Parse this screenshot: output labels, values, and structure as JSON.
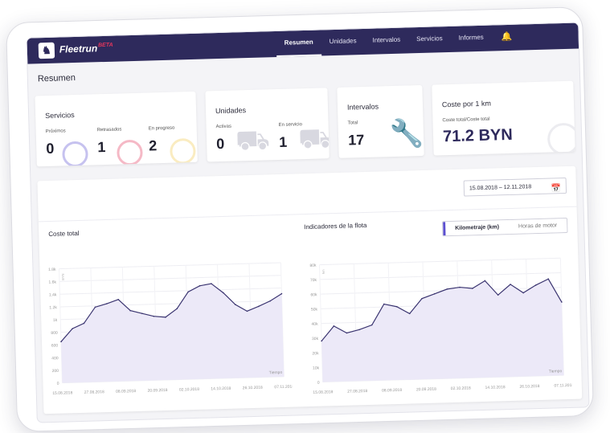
{
  "app": {
    "logo_glyph": "♞",
    "name": "Fleetrun",
    "badge": "BETA"
  },
  "nav": {
    "items": [
      {
        "label": "Resumen",
        "active": true
      },
      {
        "label": "Unidades",
        "active": false
      },
      {
        "label": "Intervalos",
        "active": false
      },
      {
        "label": "Servicios",
        "active": false
      },
      {
        "label": "Informes",
        "active": false
      }
    ],
    "bell_icon": "bell-icon"
  },
  "page": {
    "title": "Resumen"
  },
  "cards": {
    "servicios": {
      "title": "Servicios",
      "metrics": [
        {
          "label": "Próximos",
          "value": "0"
        },
        {
          "label": "Retrasados",
          "value": "1"
        },
        {
          "label": "En progreso",
          "value": "2"
        }
      ]
    },
    "unidades": {
      "title": "Unidades",
      "metrics": [
        {
          "label": "Activas",
          "value": "0"
        },
        {
          "label": "En servicio",
          "value": "1"
        }
      ]
    },
    "intervalos": {
      "title": "Intervalos",
      "metric": {
        "label": "Total",
        "value": "17"
      }
    },
    "coste": {
      "title": "Coste por 1 km",
      "metric": {
        "label": "Coste total/Coste total",
        "value": "71.2 BYN"
      }
    }
  },
  "filters": {
    "date_range": "15.08.2018 – 12.11.2018",
    "calendar_icon": "calendar-icon"
  },
  "toggle": {
    "kilometraje": "Kilometraje (km)",
    "horas": "Horas de motor",
    "selected": "Kilometraje (km)"
  },
  "colors": {
    "topbar": "#2e2a5c",
    "accent": "#5b4fd0",
    "line": "#3a3470",
    "fill": "#ece9f8",
    "beta": "#e2365c"
  },
  "chart_data": [
    {
      "type": "area",
      "title": "Coste total",
      "xlabel": "Tiempo",
      "ylabel": "BYN",
      "ylim": [
        0,
        1800
      ],
      "yticks": [
        "0",
        "200",
        "400",
        "600",
        "800",
        "1k",
        "1.2k",
        "1.4k",
        "1.6k",
        "1.8k"
      ],
      "ytick_values": [
        0,
        200,
        400,
        600,
        800,
        1000,
        1200,
        1400,
        1600,
        1800
      ],
      "x_labels": [
        "15.08.2018",
        "27.08.2018",
        "08.09.2018",
        "20.09.2018",
        "02.10.2018",
        "14.10.2018",
        "26.10.2018",
        "07.11.2018"
      ],
      "values": [
        650,
        850,
        930,
        1180,
        1230,
        1290,
        1110,
        1060,
        1010,
        990,
        1120,
        1380,
        1470,
        1500,
        1350,
        1160,
        1050,
        1120,
        1200,
        1310
      ]
    },
    {
      "type": "area",
      "title": "Indicadores de la flota",
      "xlabel": "Tiempo",
      "ylabel": "km",
      "ylim": [
        0,
        80000
      ],
      "yticks": [
        "0",
        "10k",
        "20k",
        "30k",
        "40k",
        "50k",
        "60k",
        "70k",
        "80k"
      ],
      "ytick_values": [
        0,
        10000,
        20000,
        30000,
        40000,
        50000,
        60000,
        70000,
        80000
      ],
      "x_labels": [
        "15.08.2018",
        "27.08.2018",
        "08.09.2018",
        "20.09.2018",
        "02.10.2018",
        "14.10.2018",
        "26.10.2018",
        "07.11.2018"
      ],
      "values": [
        28000,
        38000,
        33000,
        35000,
        38000,
        52000,
        50000,
        45000,
        55000,
        58000,
        61000,
        62000,
        61000,
        66000,
        56000,
        63000,
        57000,
        62000,
        66000,
        50000
      ]
    }
  ]
}
